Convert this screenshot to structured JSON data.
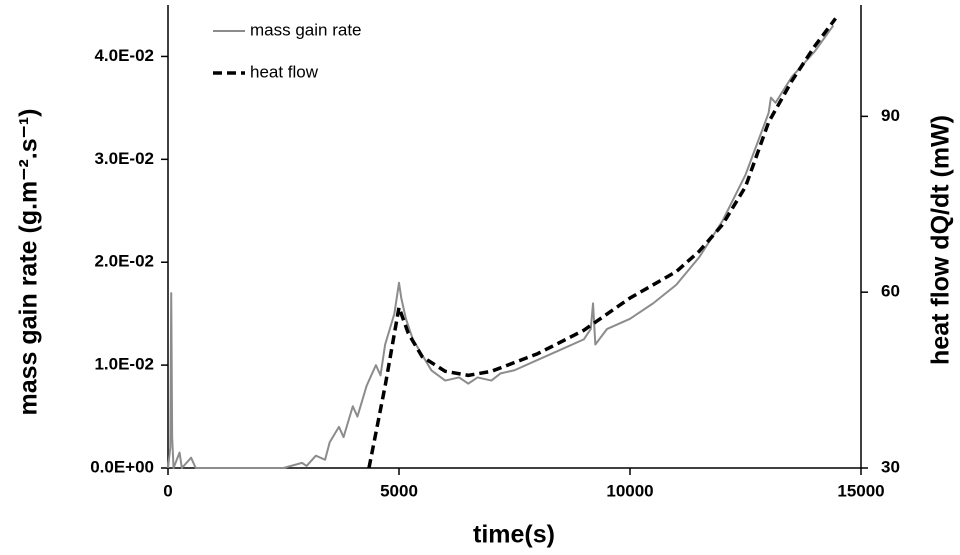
{
  "chart_data": {
    "type": "line",
    "x_label": "time(s)",
    "y_label": "mass gain rate (g.m⁻².s⁻¹)",
    "y2_label": "heat flow dQ/dt (mW)",
    "xlim": [
      0,
      15000
    ],
    "xticks": [
      0,
      5000,
      10000,
      15000
    ],
    "ylim": [
      0,
      0.045
    ],
    "yticks": [
      {
        "value": 0,
        "label": "0.0E+00"
      },
      {
        "value": 0.01,
        "label": "1.0E-02"
      },
      {
        "value": 0.02,
        "label": "2.0E-02"
      },
      {
        "value": 0.03,
        "label": "3.0E-02"
      },
      {
        "value": 0.04,
        "label": "4.0E-02"
      }
    ],
    "y2lim": [
      30,
      109
    ],
    "y2ticks": [
      30,
      60,
      90
    ],
    "legend": "top-left",
    "series": [
      {
        "name": "mass gain rate",
        "color": "#8c8c8c",
        "dash": false,
        "x": [
          0,
          50,
          70,
          90,
          120,
          250,
          300,
          500,
          600,
          2500,
          2900,
          3000,
          3200,
          3400,
          3500,
          3700,
          3800,
          4000,
          4100,
          4300,
          4500,
          4600,
          4700,
          4800,
          4900,
          5000,
          5050,
          5150,
          5300,
          5500,
          5700,
          6000,
          6300,
          6500,
          6700,
          7000,
          7200,
          7500,
          8000,
          8500,
          9000,
          9150,
          9200,
          9250,
          9500,
          10000,
          10500,
          11000,
          11500,
          12000,
          12500,
          13000,
          13050,
          13150,
          13500,
          14000,
          14400
        ],
        "values": [
          0,
          0.002,
          0.017,
          0.003,
          0,
          0.0015,
          0,
          0.001,
          0,
          0,
          0.0005,
          0.0002,
          0.0012,
          0.0008,
          0.0025,
          0.004,
          0.003,
          0.006,
          0.005,
          0.008,
          0.01,
          0.009,
          0.012,
          0.0135,
          0.015,
          0.018,
          0.0165,
          0.0145,
          0.0125,
          0.011,
          0.0095,
          0.0085,
          0.0088,
          0.0082,
          0.0088,
          0.0085,
          0.0092,
          0.0095,
          0.0105,
          0.0115,
          0.0125,
          0.0135,
          0.016,
          0.012,
          0.0135,
          0.0145,
          0.016,
          0.0178,
          0.0205,
          0.024,
          0.0285,
          0.0345,
          0.036,
          0.0355,
          0.038,
          0.0405,
          0.043
        ]
      },
      {
        "name": "heat flow",
        "color": "#000000",
        "dash": true,
        "axis": "y2",
        "x": [
          4350,
          4700,
          5000,
          5200,
          5500,
          6000,
          6500,
          7000,
          7500,
          8000,
          9000,
          10000,
          11000,
          11500,
          12000,
          12500,
          13000,
          13500,
          14000,
          14450
        ],
        "values": [
          30,
          44,
          57.4,
          53,
          49,
          46.5,
          45.8,
          46.5,
          48,
          49.5,
          53.5,
          59,
          63.5,
          67,
          71.5,
          78,
          89,
          96,
          102,
          106.7
        ]
      }
    ]
  }
}
